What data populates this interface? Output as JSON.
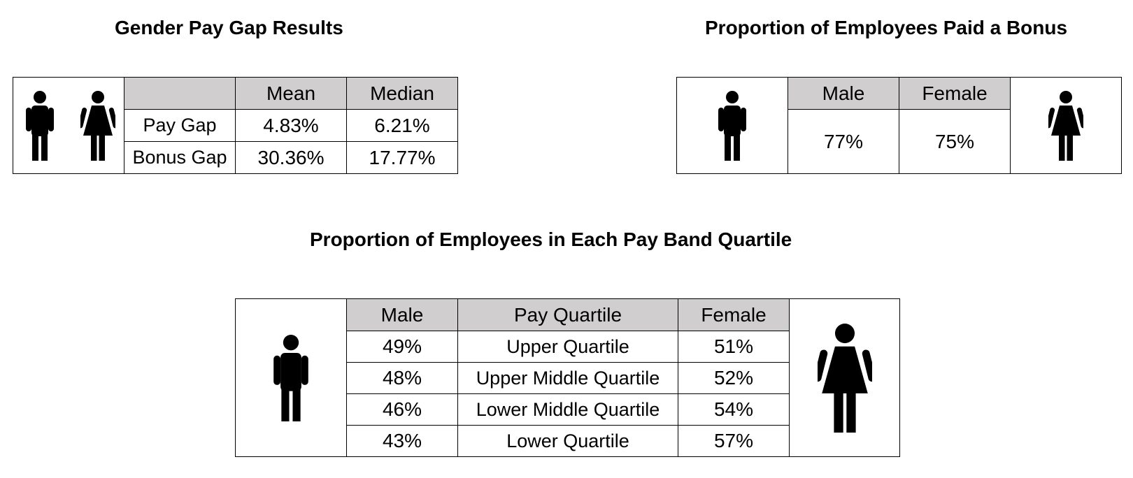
{
  "pay_gap": {
    "title": "Gender Pay Gap Results",
    "headers": [
      "",
      "Mean",
      "Median"
    ],
    "rows": [
      {
        "label": "Pay Gap",
        "mean": "4.83%",
        "median": "6.21%"
      },
      {
        "label": "Bonus Gap",
        "mean": "30.36%",
        "median": "17.77%"
      }
    ]
  },
  "bonus": {
    "title": "Proportion of Employees Paid a Bonus",
    "male_label": "Male",
    "female_label": "Female",
    "male_value": "77%",
    "female_value": "75%"
  },
  "quartiles": {
    "title": "Proportion of Employees in Each Pay Band Quartile",
    "headers": [
      "Male",
      "Pay Quartile",
      "Female"
    ],
    "rows": [
      {
        "male": "49%",
        "quartile": "Upper Quartile",
        "female": "51%"
      },
      {
        "male": "48%",
        "quartile": "Upper Middle Quartile",
        "female": "52%"
      },
      {
        "male": "46%",
        "quartile": "Lower Middle Quartile",
        "female": "54%"
      },
      {
        "male": "43%",
        "quartile": "Lower Quartile",
        "female": "57%"
      }
    ]
  },
  "colors": {
    "header_fill": "#d0cece",
    "border": "#000000",
    "icon": "#000000"
  },
  "icons": [
    "male-person-icon",
    "female-person-icon"
  ]
}
